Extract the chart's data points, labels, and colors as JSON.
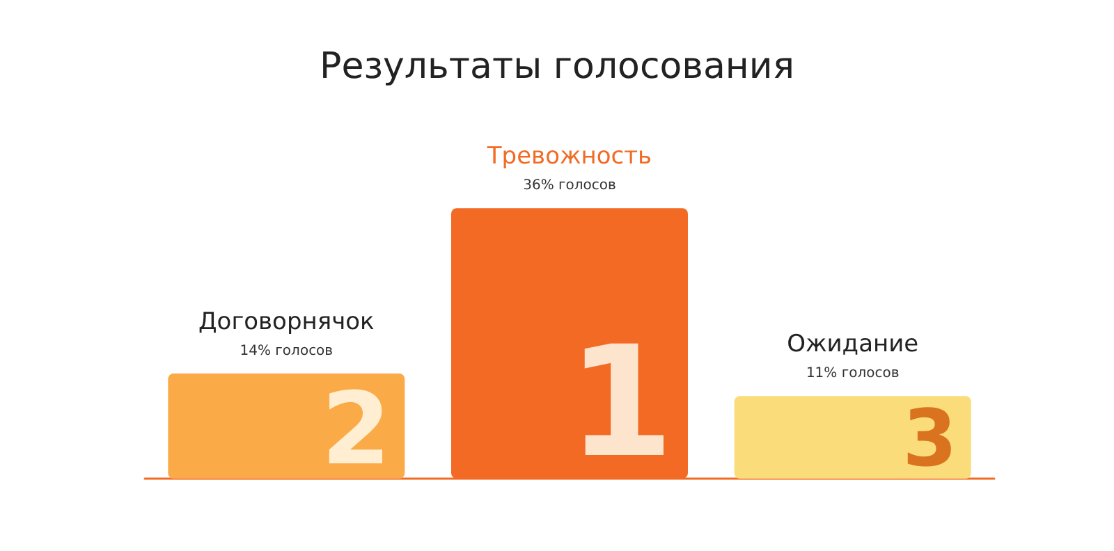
{
  "chart_data": {
    "type": "bar",
    "title": "Результаты голосования",
    "categories": [
      "Договорнячок",
      "Тревожность",
      "Ожидание"
    ],
    "values": [
      14,
      36,
      11
    ],
    "value_labels": [
      "14% голосов",
      "36% голосов",
      "11% голосов"
    ],
    "colors": [
      "#fbaa48",
      "#f26a24",
      "#fbdc7a"
    ],
    "annotations": [
      "2",
      "1",
      "3"
    ]
  }
}
